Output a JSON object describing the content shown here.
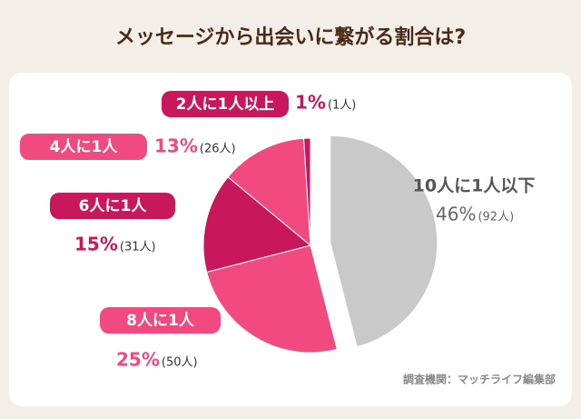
{
  "chart_data": {
    "type": "pie",
    "title": "メッセージから出会いに繋がる割合は?",
    "categories": [
      "10人に1人以下",
      "8人に1人",
      "6人に1人",
      "4人に1人",
      "2人に1人以上"
    ],
    "values": [
      46,
      25,
      15,
      13,
      1
    ],
    "value_labels": [
      "46%",
      "25%",
      "15%",
      "13%",
      "1%"
    ],
    "count_labels": [
      "(92人)",
      "(50人)",
      "(31人)",
      "(26人)",
      "(1人)"
    ],
    "colors": [
      "#c9c9c9",
      "#f04a80",
      "#c8175a",
      "#f04a80",
      "#c8175a"
    ],
    "source": "調査機関：マッチライフ編集部"
  }
}
